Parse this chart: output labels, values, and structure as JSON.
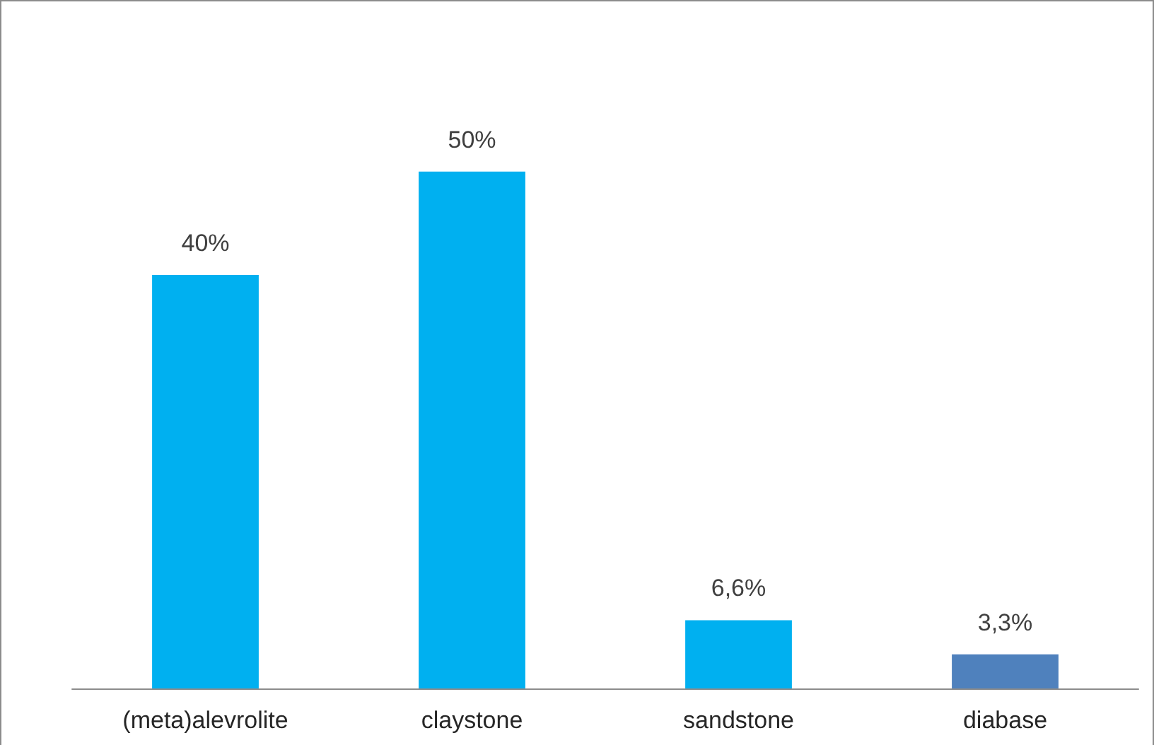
{
  "chart_data": {
    "type": "bar",
    "categories": [
      "(meta)alevrolite",
      "claystone",
      "sandstone",
      "diabase"
    ],
    "values": [
      40,
      50,
      6.6,
      3.3
    ],
    "value_labels": [
      "40%",
      "50%",
      "6,6%",
      "3,3%"
    ],
    "colors": [
      "#00b0f0",
      "#00b0f0",
      "#00b0f0",
      "#4f81bd"
    ]
  }
}
